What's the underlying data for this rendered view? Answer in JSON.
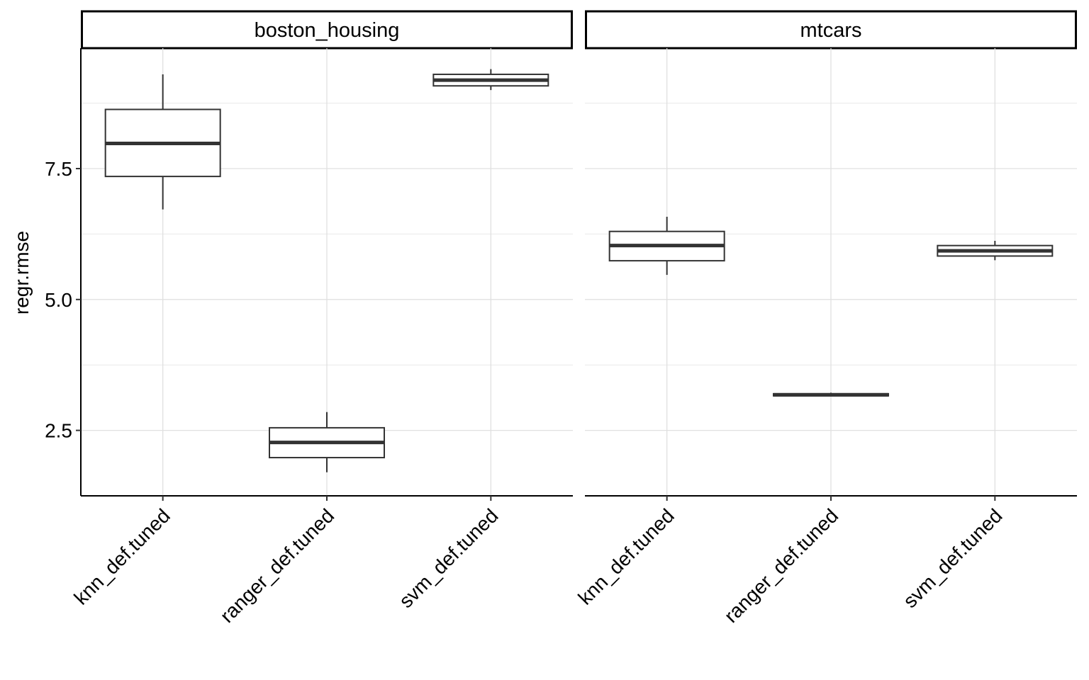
{
  "chart_data": {
    "type": "boxplot",
    "ylabel": "regr.rmse",
    "ylim": [
      1.25,
      9.8
    ],
    "yticks": [
      2.5,
      5.0,
      7.5
    ],
    "ytick_labels": [
      "2.5",
      "5.0",
      "7.5"
    ],
    "grid": true,
    "panels": [
      {
        "facet": "boston_housing",
        "categories": [
          "knn_def.tuned",
          "ranger_def.tuned",
          "svm_def.tuned"
        ],
        "boxes": [
          {
            "name": "knn_def.tuned",
            "min": 6.72,
            "q1": 7.35,
            "median": 7.98,
            "q3": 8.63,
            "max": 9.3
          },
          {
            "name": "ranger_def.tuned",
            "min": 1.7,
            "q1": 1.98,
            "median": 2.27,
            "q3": 2.55,
            "max": 2.85
          },
          {
            "name": "svm_def.tuned",
            "min": 9.0,
            "q1": 9.08,
            "median": 9.19,
            "q3": 9.3,
            "max": 9.4
          }
        ]
      },
      {
        "facet": "mtcars",
        "categories": [
          "knn_def.tuned",
          "ranger_def.tuned",
          "svm_def.tuned"
        ],
        "boxes": [
          {
            "name": "knn_def.tuned",
            "min": 5.47,
            "q1": 5.74,
            "median": 6.03,
            "q3": 6.3,
            "max": 6.58
          },
          {
            "name": "ranger_def.tuned",
            "min": 3.15,
            "q1": 3.16,
            "median": 3.18,
            "q3": 3.2,
            "max": 3.22
          },
          {
            "name": "svm_def.tuned",
            "min": 5.75,
            "q1": 5.83,
            "median": 5.93,
            "q3": 6.03,
            "max": 6.12
          }
        ]
      }
    ]
  }
}
